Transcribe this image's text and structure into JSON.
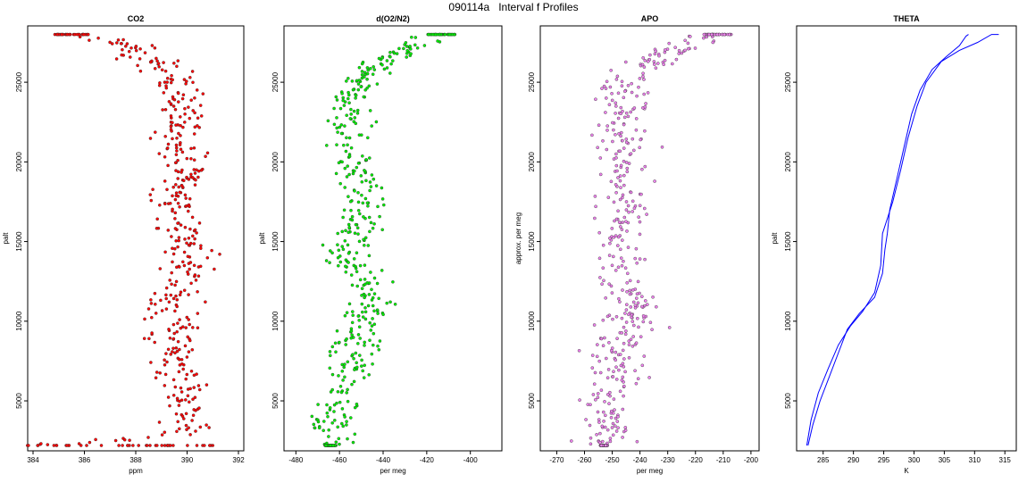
{
  "figure": {
    "title": "090114a   Interval f Profiles"
  },
  "chart_data": [
    {
      "type": "scatter",
      "title": "CO2",
      "xlabel": "ppm",
      "ylabel": "palt",
      "xlim": [
        384,
        392
      ],
      "ylim": [
        2200,
        28200
      ],
      "xticks": [
        "384",
        "386",
        "388",
        "390",
        "392"
      ],
      "yticks": [
        "5000",
        "10000",
        "15000",
        "20000",
        "25000"
      ],
      "color": "#ff0000",
      "series": [
        {
          "profile": [
            [
              384.6,
              2200
            ],
            [
              390.2,
              3000
            ],
            [
              390.0,
              4000
            ],
            [
              390.1,
              5000
            ],
            [
              389.7,
              6000
            ],
            [
              389.4,
              7000
            ],
            [
              389.6,
              8000
            ],
            [
              389.5,
              9000
            ],
            [
              389.2,
              10000
            ],
            [
              389.3,
              11000
            ],
            [
              389.6,
              12000
            ],
            [
              389.9,
              13000
            ],
            [
              390.1,
              14000
            ],
            [
              390.0,
              15000
            ],
            [
              389.6,
              16000
            ],
            [
              389.6,
              17000
            ],
            [
              389.7,
              18000
            ],
            [
              389.9,
              19000
            ],
            [
              389.8,
              20000
            ],
            [
              389.8,
              21000
            ],
            [
              389.9,
              22000
            ],
            [
              389.9,
              23000
            ],
            [
              389.9,
              24000
            ],
            [
              389.7,
              25000
            ],
            [
              389.2,
              26000
            ],
            [
              388.5,
              26500
            ],
            [
              387.9,
              27000
            ],
            [
              387.2,
              27500
            ],
            [
              386.0,
              28000
            ],
            [
              385.0,
              28000
            ]
          ],
          "spread": 0.7
        }
      ]
    },
    {
      "type": "scatter",
      "title": "d(O2/N2)",
      "xlabel": "per meg",
      "ylabel": "palt",
      "xlim": [
        -483,
        -388
      ],
      "ylim": [
        2200,
        28200
      ],
      "xticks": [
        "-480",
        "-460",
        "-440",
        "-420",
        "-400"
      ],
      "yticks": [
        "5000",
        "10000",
        "15000",
        "20000",
        "25000"
      ],
      "color": "#00ee00",
      "series": [
        {
          "profile": [
            [
              -462,
              2200
            ],
            [
              -466,
              3000
            ],
            [
              -462,
              4000
            ],
            [
              -463,
              5000
            ],
            [
              -458,
              6000
            ],
            [
              -456,
              7000
            ],
            [
              -455,
              8000
            ],
            [
              -452,
              9000
            ],
            [
              -448,
              10000
            ],
            [
              -446,
              11000
            ],
            [
              -445,
              12000
            ],
            [
              -452,
              13000
            ],
            [
              -458,
              14000
            ],
            [
              -455,
              15000
            ],
            [
              -452,
              16000
            ],
            [
              -450,
              17000
            ],
            [
              -451,
              18000
            ],
            [
              -451,
              19000
            ],
            [
              -453,
              20000
            ],
            [
              -454,
              21000
            ],
            [
              -455,
              22000
            ],
            [
              -455,
              23000
            ],
            [
              -454,
              24000
            ],
            [
              -450,
              25000
            ],
            [
              -444,
              26000
            ],
            [
              -437,
              26500
            ],
            [
              -430,
              27000
            ],
            [
              -424,
              27500
            ],
            [
              -418,
              28000
            ],
            [
              -408,
              28000
            ]
          ],
          "spread": 7
        }
      ]
    },
    {
      "type": "scatter",
      "title": "APO",
      "xlabel": "per meg",
      "ylabel": "approx. per meg",
      "xlim": [
        -274,
        -199
      ],
      "ylim": [
        2200,
        28200
      ],
      "xticks": [
        "-270",
        "-260",
        "-250",
        "-240",
        "-230",
        "-220",
        "-210",
        "-200"
      ],
      "yticks": [
        "5000",
        "10000",
        "15000",
        "20000",
        "25000"
      ],
      "color": "#ee82ee",
      "series": [
        {
          "profile": [
            [
              -252,
              2200
            ],
            [
              -254,
              3000
            ],
            [
              -251,
              4000
            ],
            [
              -252,
              5000
            ],
            [
              -250,
              6000
            ],
            [
              -249,
              7000
            ],
            [
              -249,
              8000
            ],
            [
              -246,
              9000
            ],
            [
              -243,
              10000
            ],
            [
              -242,
              11000
            ],
            [
              -243,
              12000
            ],
            [
              -248,
              13000
            ],
            [
              -249,
              14000
            ],
            [
              -248,
              15000
            ],
            [
              -246,
              16000
            ],
            [
              -246,
              17000
            ],
            [
              -246,
              18000
            ],
            [
              -245,
              19000
            ],
            [
              -246,
              20000
            ],
            [
              -246,
              21000
            ],
            [
              -247,
              22000
            ],
            [
              -246,
              23000
            ],
            [
              -245,
              24000
            ],
            [
              -244,
              25000
            ],
            [
              -239,
              26000
            ],
            [
              -234,
              26500
            ],
            [
              -228,
              27000
            ],
            [
              -222,
              27500
            ],
            [
              -216,
              28000
            ],
            [
              -208,
              28000
            ]
          ],
          "spread": 7
        }
      ]
    },
    {
      "type": "line",
      "title": "THETA",
      "xlabel": "K",
      "ylabel": "palt",
      "xlim": [
        281.5,
        316
      ],
      "ylim": [
        2200,
        28200
      ],
      "xticks": [
        "285",
        "290",
        "295",
        "300",
        "305",
        "310",
        "315"
      ],
      "yticks": [
        "5000",
        "10000",
        "15000",
        "20000",
        "25000"
      ],
      "color": "#0000ff",
      "series": [
        {
          "name": "",
          "points": [
            [
              282.5,
              2200
            ],
            [
              283.3,
              3500
            ],
            [
              284.5,
              5000
            ],
            [
              286.0,
              6500
            ],
            [
              287.5,
              8000
            ],
            [
              289.0,
              9500
            ],
            [
              291.0,
              10500
            ],
            [
              293.5,
              11500
            ],
            [
              294.8,
              13000
            ],
            [
              295.2,
              14500
            ],
            [
              295.6,
              15500
            ],
            [
              296.0,
              17000
            ],
            [
              297.2,
              19000
            ],
            [
              298.4,
              21000
            ],
            [
              299.6,
              23000
            ],
            [
              301.0,
              24500
            ],
            [
              303.0,
              25800
            ],
            [
              305.3,
              26600
            ],
            [
              307.5,
              27300
            ],
            [
              308.6,
              27900
            ],
            [
              309.0,
              28000
            ]
          ]
        },
        {
          "name": "",
          "points": [
            [
              282.3,
              2200
            ],
            [
              283.0,
              3800
            ],
            [
              284.2,
              5500
            ],
            [
              285.8,
              7000
            ],
            [
              287.5,
              8500
            ],
            [
              289.5,
              9700
            ],
            [
              291.5,
              10600
            ],
            [
              293.5,
              11800
            ],
            [
              294.5,
              13500
            ],
            [
              294.8,
              15500
            ],
            [
              296.5,
              17500
            ],
            [
              297.8,
              19500
            ],
            [
              299.0,
              21500
            ],
            [
              300.5,
              23500
            ],
            [
              302.0,
              25000
            ],
            [
              304.5,
              26300
            ],
            [
              307.5,
              27000
            ],
            [
              310.5,
              27500
            ],
            [
              312.8,
              28000
            ],
            [
              314.0,
              28000
            ]
          ]
        }
      ]
    }
  ]
}
